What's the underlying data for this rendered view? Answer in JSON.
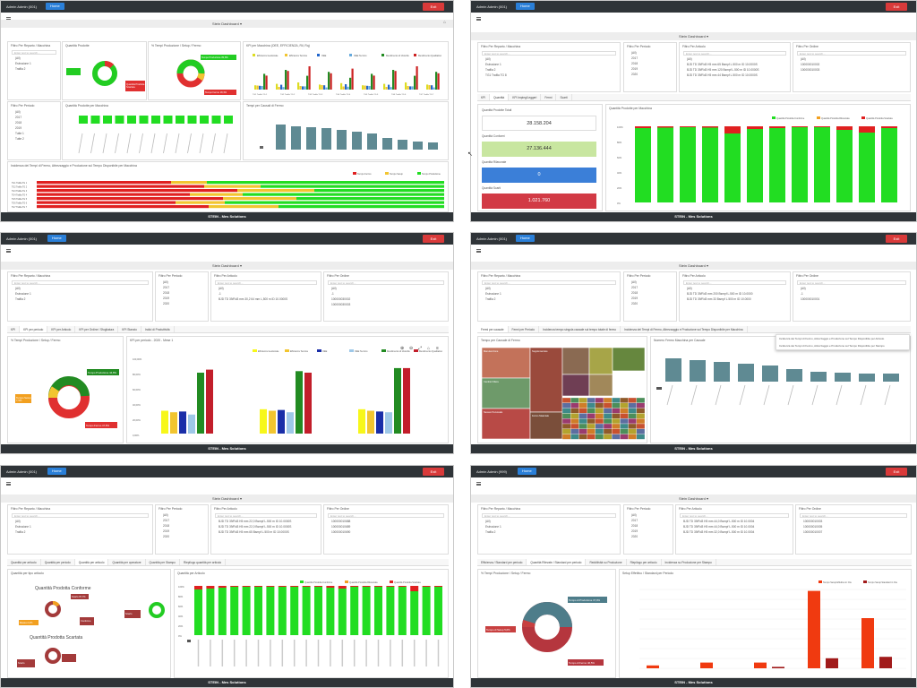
{
  "common": {
    "user": "Admin Admin (001)",
    "home_label": "Home",
    "exit_label": "Exit",
    "dashboard_title": "Stein Dashboard",
    "footer": "STEIN - Mes Solutions",
    "search_placeholder": "Enter text to search...",
    "all_label": "(All)"
  },
  "shot1": {
    "filters": [
      "Filtro Per Reparto / Macchina",
      "Quantità Prodotte",
      "% Tempi Produzione / Setup / Fermo",
      "KPI per Macchina (OEE, EFFICIENZA, Ril, Rq)"
    ],
    "tree": [
      "Estrusione 1",
      "Trafila 2"
    ],
    "period_title": "Filtro Per Periodo",
    "years": [
      "2017",
      "2018",
      "2019",
      "Tutte 1",
      "Tutte 2"
    ],
    "qty_machine_title": "Quantità Prodotte per Macchina",
    "stops_title": "Tempi per Causali di Fermo",
    "incidence_title": "Incidenza dei Tempi di Fermo, Attrezzaggio e Produzione sul Tempo Disponibile per Macchina",
    "legend_incidence": [
      "Tempo Fermo",
      "Tempo Setup",
      "Tempo Produzione"
    ],
    "kpi_legend": [
      "Efficienza Gestionale",
      "Efficienza Tecnica",
      "OEE",
      "OEE Tecnico",
      "Rendimento di Velocità",
      "Rendimento Qualitativo"
    ],
    "donut_labels": [
      "Quantità Prodotta Scartata",
      "Tempo Produzione 80,8%",
      "Tempo Fermo 18,3%"
    ],
    "machines": [
      "TG1 Trafila TG 1",
      "TG2 Trafila TG 2",
      "TG3 Trafila TG 3",
      "TG4 Trafila TG 4",
      "TG5 Trafila TG 5",
      "TG6 Trafila TG 6",
      "TG7 Trafila TG 7"
    ]
  },
  "shot2": {
    "filters": [
      "Filtro Per Reparto / Macchina",
      "Filtro Per Periodo",
      "Filtro Per Articolo",
      "Filtro Per Ordine"
    ],
    "tree": [
      "Estrusione 1",
      "Trafila 2",
      "TG1 Trafila TG 8"
    ],
    "years": [
      "2017",
      "2018",
      "2019",
      "2020"
    ],
    "articles": [
      "BJD TD 39/Rd3 H5 mm 65 Bsmpf L.500 m ID 10.0000S",
      "BJD TD 39/Rd3 H5 mm 120 Bsmpf L.500 m ID 10.0000S",
      "BJD TD 39/Rd3 H5 mm 44 Bsmpf L.500 m ID 10.0000S"
    ],
    "orders": [
      "100000010002",
      "100000010003"
    ],
    "tabs": [
      "KPI",
      "Quantità",
      "KPI Impieg/Leggeri",
      "Fermi",
      "Scarti"
    ],
    "kpi_title": "Quantità Prodotte Totali",
    "kpis": [
      {
        "label": "Quantità Prodotte Totali",
        "value": "28.158.204",
        "color": "#ffffff",
        "fg": "#333"
      },
      {
        "label": "Quantità Conformi",
        "value": "27.136.444",
        "color": "#c8e6a0",
        "fg": "#333"
      },
      {
        "label": "Quantità Rilavorate",
        "value": "0",
        "color": "#3b7fd8",
        "fg": "#fff"
      },
      {
        "label": "Quantità Scarti",
        "value": "1.021.760",
        "color": "#d23a45",
        "fg": "#fff"
      }
    ],
    "chart_title": "Quantità Prodotte per Macchina",
    "legend": [
      "Quantità Prodotta Conforme",
      "Quantità Prodotta Rilavorata",
      "Quantità Prodotta Scartata"
    ]
  },
  "shot3": {
    "filters": [
      "Filtro Per Reparto / Macchina",
      "Filtro Per Periodo",
      "Filtro Per Articolo",
      "Filtro Per Ordine"
    ],
    "tree": [
      "Estrusione 1",
      "Trafila 2"
    ],
    "years": [
      "2017",
      "2018",
      "2019",
      "2020"
    ],
    "articles": [
      "-1",
      "BJD TD 39/Rd3 mm 30,2 64 mm L,500 m ID 10.0000S"
    ],
    "orders": [
      "-1",
      "100000030002",
      "100000030003"
    ],
    "tabs": [
      "KPI",
      "KPI per periodo",
      "KPI per Articolo",
      "KPI per Ordine / Sfogliatura",
      "KPI Stanzio",
      "Indici di Produttività"
    ],
    "donut_title": "% Tempi Produzione / Setup / Fermo",
    "donut_labels": [
      "Tempo Produzione 44,8%",
      "Tempo Setup 7,5%",
      "Tempo Fermo 47,8%"
    ],
    "chart_title": "KPI per periodo - 2020 - Mese 1",
    "legend": [
      "Efficienza Gestionale",
      "Efficienza Tecnica",
      "OEE",
      "OEE Tecnico",
      "Rendimento di Velocità",
      "Rendimento Qualitativo"
    ],
    "ylabels": [
      "100,00%",
      "80,00%",
      "60,00%",
      "40,00%",
      "20,00%",
      "0,00%"
    ]
  },
  "shot4": {
    "filters": [
      "Filtro Per Reparto / Macchina",
      "Filtro Per Periodo",
      "Filtro Per Articolo",
      "Filtro Per Ordine"
    ],
    "tree": [
      "Estrusione 1",
      "Trafila 2"
    ],
    "years": [
      "2017",
      "2018",
      "2019",
      "2020"
    ],
    "articles": [
      "BJD TD 39/Rd3 mm 200 Bsmpf L.500 m ID 10.0000",
      "BJD TD 39/Rd3 mm 33 Bsmpf L.500 m ID 10.0000"
    ],
    "orders": [
      "-1",
      "100000010001"
    ],
    "tabs": [
      "Fermi per causale",
      "Fermi per Periodo",
      "Incidenza tempo singola causale sul tempo totale di fermo",
      "Incidenza dei Tempi di Fermo, Attrezzaggio e Produzione sul Tempo Disponibile per Macchina"
    ],
    "treemap_title": "Tempo per Causale di Fermo",
    "bar_title": "Numero Fermo Macchina per Causale",
    "tooltip": [
      "Incidenza dei Tempi di Fermo, Attrezzaggio e Produzione sul Tempo Disponibile per Articolo",
      "Incidenza dei Tempi di Fermo, Attrezzaggio e Produzione sul Tempo Disponibile per Stampo"
    ],
    "tiles": [
      "Manutenzione",
      "Cambio Filiera",
      "Supplementare",
      "Fermo Materiale",
      "Nessun Personale"
    ]
  },
  "shot5": {
    "filters": [
      "Filtro Per Reparto / Macchina",
      "Filtro Per Periodo",
      "Filtro Per Articolo",
      "Filtro Per Ordine"
    ],
    "tree": [
      "Estrusione 1",
      "Trafila 2"
    ],
    "years": [
      "2017",
      "2018",
      "2019",
      "2020"
    ],
    "articles": [
      "BJD TD 39/Rd3 H5 mm 22,0 Bsmpf L.500 m ID 10.0000S",
      "BJD TD 39/Rd3 H5 mm 22,0 Bsmpf L.500 m ID 10.0000S",
      "BJD TD 39/Rd3 H5 mm 65 Bsmpf L.500 m ID 10.0000S"
    ],
    "orders": [
      "100000010688",
      "100000010689",
      "100000010690"
    ],
    "tabs": [
      "Quantità per articolo",
      "Quantità per periodo",
      "Quantità per articolo",
      "Quantità per operatore",
      "Quantità per Stampo",
      "Riepilogo quantità per articolo"
    ],
    "qty_title": "Quantità per tipo articolo",
    "qty_labels": [
      "Quantità Prodotta Conforme",
      "Quantità Prodotta Scartata"
    ],
    "boxes": [
      "Scarto 97,7%",
      "Conforme 97,7%",
      "Massa 2,2%",
      "Scarto 8,5%",
      "Scarto 31,3%"
    ],
    "chart_title": "Quantità per Articolo",
    "legend": [
      "Quantità Prodotta Conforme",
      "Quantità Prodotta Rilavorata",
      "Quantità Prodotta Scartata"
    ]
  },
  "shot6": {
    "user": "Admin Admin (999)",
    "filters": [
      "Filtro Per Reparto / Macchina",
      "Filtro Per Periodo",
      "Filtro Per Articolo",
      "Filtro Per Ordine"
    ],
    "tree": [
      "Estrusione 1",
      "Trafila 2"
    ],
    "years": [
      "2017",
      "2018",
      "2019",
      "2020"
    ],
    "articles": [
      "BJD TD 39/Rd3 H5 mm 44,0 Bsmpf L.500 m ID 10.0004",
      "BJD TD 39/Rd3 H5 mm 44,0 Bsmpf L.500 m ID 10.0004",
      "BJD TD 39/Rd3 H5 mm 32,0 Bsmpf L.500 m ID 10.0004"
    ],
    "orders": [
      "100000010003",
      "100000010005",
      "100000010007"
    ],
    "tabs": [
      "Efficienza / Standard per periodo",
      "Quantità Rilevate / Standard per periodo",
      "Redditività su Produzione",
      "Riepilogo per articolo",
      "Incidenza su Produzione per Stampo"
    ],
    "donut_title": "% Tempi Produzione / Setup / Fermo",
    "donut_labels": [
      "Tempo di Produzione 47,9%",
      "Tempo di Setup 5,6%",
      "Tempo di Fermo 46,5%"
    ],
    "chart_title": "Setup Effettivo / Standard per Periodo",
    "legend": [
      "Tempo Setup Effettivo in Ore",
      "Tempo Setup Standard in Ore"
    ]
  }
}
